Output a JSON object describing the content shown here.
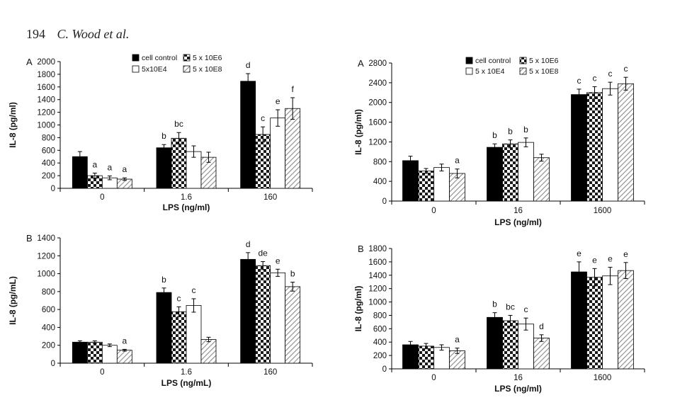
{
  "page_header": {
    "page_number": "194",
    "authors": "C. Wood et al."
  },
  "legend_labels": {
    "cell_control": "cell control",
    "fmt_a": "5x10E4",
    "fmt_b": "5 x 10E4"
  },
  "colors": {
    "cell_control": "#000000",
    "checker": "#1a1a1a",
    "white": "#ffffff",
    "hatch": "#8a8a8a"
  },
  "chart_data": [
    {
      "type": "bar",
      "panel_label": "A",
      "categories": [
        "0",
        "1.6",
        "160"
      ],
      "xlabel": "LPS (ng/ml)",
      "ylabel": "IL-8 (pg/ml)",
      "ylim": [
        0,
        2000
      ],
      "yticks": [
        0,
        200,
        400,
        600,
        800,
        1000,
        1200,
        1400,
        1600,
        1800,
        2000
      ],
      "grid": false,
      "legend_position": "top",
      "series": [
        {
          "name": "cell control",
          "values": [
            500,
            640,
            1690
          ],
          "errors": [
            80,
            50,
            120
          ],
          "letters": [
            "",
            "b",
            "d"
          ]
        },
        {
          "name": "5 x 10E6",
          "values": [
            200,
            790,
            850
          ],
          "errors": [
            40,
            90,
            120
          ],
          "letters": [
            "a",
            "bc",
            "c"
          ]
        },
        {
          "name": "5x10E4",
          "values": [
            165,
            580,
            1110
          ],
          "errors": [
            30,
            90,
            130
          ],
          "letters": [
            "a",
            "",
            "e"
          ]
        },
        {
          "name": "5 x 10E8",
          "values": [
            145,
            490,
            1260
          ],
          "errors": [
            20,
            80,
            170
          ],
          "letters": [
            "a",
            "",
            "f"
          ]
        }
      ]
    },
    {
      "type": "bar",
      "panel_label": "B",
      "categories": [
        "0",
        "1.6",
        "160"
      ],
      "xlabel": "LPS (ng/mL)",
      "ylabel": "IL-8 (pg/mL)",
      "ylim": [
        0,
        1400
      ],
      "yticks": [
        0,
        200,
        400,
        600,
        800,
        1000,
        1200,
        1400
      ],
      "grid": false,
      "series": [
        {
          "values": [
            235,
            790,
            1160
          ],
          "errors": [
            15,
            50,
            75
          ],
          "letters": [
            "",
            "b",
            "d"
          ]
        },
        {
          "values": [
            235,
            575,
            1090
          ],
          "errors": [
            15,
            55,
            45
          ],
          "letters": [
            "",
            "c",
            "de"
          ]
        },
        {
          "values": [
            200,
            645,
            1010
          ],
          "errors": [
            15,
            75,
            40
          ],
          "letters": [
            "",
            "c",
            "e"
          ]
        },
        {
          "values": [
            145,
            265,
            855
          ],
          "errors": [
            10,
            25,
            50
          ],
          "letters": [
            "a",
            "",
            "b"
          ]
        }
      ]
    },
    {
      "type": "bar",
      "panel_label": "A",
      "categories": [
        "0",
        "16",
        "1600"
      ],
      "xlabel": "LPS (ng/ml)",
      "ylabel": "IL-8 (pg/ml)",
      "ylim": [
        0,
        2800
      ],
      "yticks": [
        0,
        400,
        800,
        1200,
        1600,
        2000,
        2400,
        2800
      ],
      "grid": false,
      "legend_position": "top",
      "series": [
        {
          "name": "cell control",
          "values": [
            820,
            1090,
            2160
          ],
          "errors": [
            90,
            70,
            110
          ],
          "letters": [
            "",
            "b",
            "c"
          ]
        },
        {
          "name": "5 x 10E6",
          "values": [
            610,
            1160,
            2200
          ],
          "errors": [
            50,
            80,
            120
          ],
          "letters": [
            "",
            "b",
            "c"
          ]
        },
        {
          "name": "5 x 10E4",
          "values": [
            680,
            1190,
            2280
          ],
          "errors": [
            70,
            90,
            130
          ],
          "letters": [
            "",
            "b",
            "c"
          ]
        },
        {
          "name": "5 x 10E8",
          "values": [
            560,
            880,
            2380
          ],
          "errors": [
            90,
            70,
            130
          ],
          "letters": [
            "a",
            "",
            "c"
          ]
        }
      ]
    },
    {
      "type": "bar",
      "panel_label": "B",
      "categories": [
        "0",
        "16",
        "1600"
      ],
      "xlabel": "LPS (ng/ml)",
      "ylabel": "IL-8 (pg/ml)",
      "ylim": [
        0,
        1800
      ],
      "yticks": [
        0,
        200,
        400,
        600,
        800,
        1000,
        1200,
        1400,
        1600,
        1800
      ],
      "grid": false,
      "series": [
        {
          "values": [
            360,
            770,
            1450
          ],
          "errors": [
            50,
            70,
            150
          ],
          "letters": [
            "",
            "b",
            "e"
          ]
        },
        {
          "values": [
            340,
            720,
            1370
          ],
          "errors": [
            40,
            80,
            130
          ],
          "letters": [
            "",
            "bc",
            "e"
          ]
        },
        {
          "values": [
            320,
            670,
            1390
          ],
          "errors": [
            40,
            90,
            130
          ],
          "letters": [
            "",
            "c",
            "e"
          ]
        },
        {
          "values": [
            270,
            460,
            1470
          ],
          "errors": [
            40,
            50,
            120
          ],
          "letters": [
            "a",
            "d",
            "e"
          ]
        }
      ]
    }
  ]
}
